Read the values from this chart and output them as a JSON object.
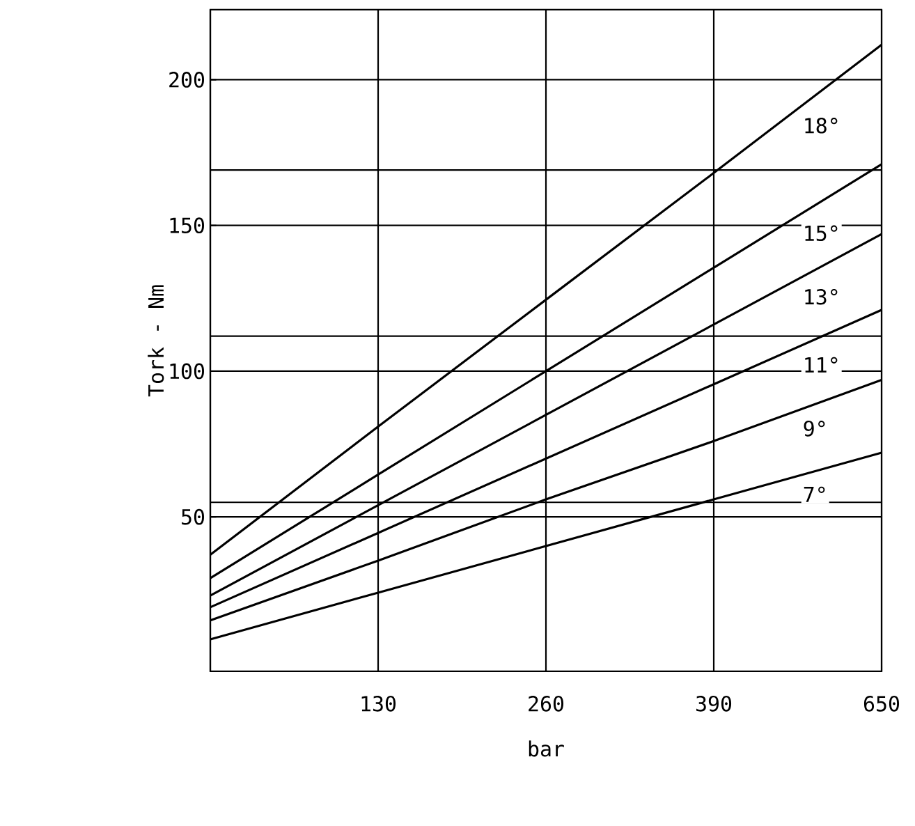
{
  "chart_data": {
    "type": "line",
    "xlabel": "bar",
    "ylabel": "Tork  -  Nm",
    "categories": [
      null,
      "130",
      "260",
      "390",
      "650"
    ],
    "series": [
      {
        "name": "18°",
        "color": "#000000",
        "values": [
          37,
          81,
          124.5,
          168,
          212
        ]
      },
      {
        "name": "15°",
        "color": "#000000",
        "values": [
          29,
          64.5,
          100,
          135.5,
          171
        ]
      },
      {
        "name": "13°",
        "color": "#000000",
        "values": [
          23,
          54,
          85,
          116,
          147
        ]
      },
      {
        "name": "11°",
        "color": "#000000",
        "values": [
          19,
          44.5,
          70,
          95.5,
          121
        ]
      },
      {
        "name": "9°",
        "color": "#000000",
        "values": [
          14.5,
          35,
          56,
          76,
          97
        ]
      },
      {
        "name": "7°",
        "color": "#000000",
        "values": [
          8,
          24,
          40,
          56,
          72
        ]
      }
    ],
    "ylim": [
      -3,
      224
    ],
    "yticks": [
      50,
      100,
      150,
      200
    ],
    "ref_lines": [
      {
        "axis": "y",
        "value": 169
      },
      {
        "axis": "y",
        "value": 112
      },
      {
        "axis": "y",
        "value": 55
      }
    ],
    "grid": true,
    "marker": "none",
    "line_style": "solid"
  }
}
